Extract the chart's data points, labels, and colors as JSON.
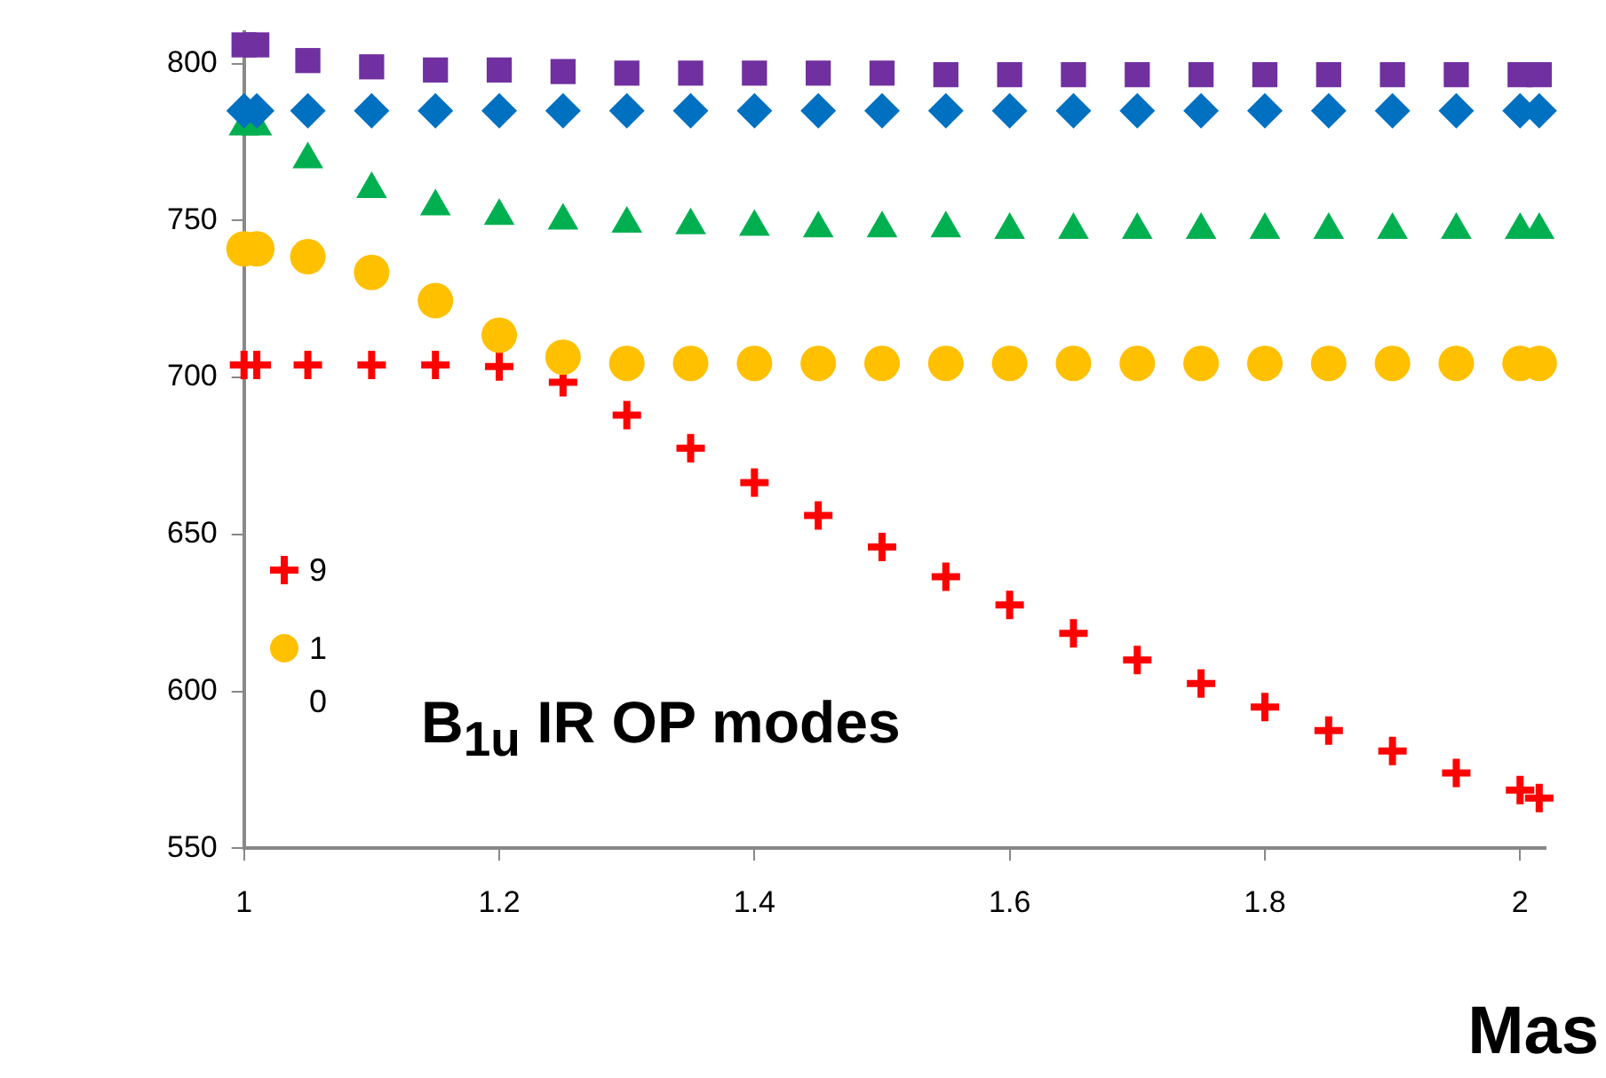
{
  "chart_data": {
    "type": "scatter",
    "xlabel": "Mas",
    "annotations": [
      "B$_{1u}$ IR OP modes"
    ],
    "x": [
      1,
      1.01,
      1.05,
      1.1,
      1.15,
      1.2,
      1.25,
      1.3,
      1.35,
      1.4,
      1.45,
      1.5,
      1.55,
      1.6,
      1.65,
      1.7,
      1.75,
      1.8,
      1.85,
      1.9,
      1.95,
      2.0,
      2.015
    ],
    "series": [
      {
        "color": "#7030a0",
        "marker": "square",
        "values": [
          806,
          806,
          801,
          799,
          798,
          798,
          797.5,
          797,
          797,
          797,
          797,
          797,
          796.5,
          796.5,
          796.5,
          796.5,
          796.5,
          796.5,
          796.5,
          796.5,
          796.5,
          796.5,
          796.5
        ]
      },
      {
        "color": "#0070c0",
        "marker": "diamond",
        "values": [
          785,
          785,
          785,
          785,
          785,
          785,
          785,
          785,
          785,
          785,
          785,
          785,
          785,
          785,
          785,
          785,
          785,
          785,
          785,
          785,
          785,
          785,
          785
        ]
      },
      {
        "color": "#00b050",
        "marker": "triangle",
        "values": [
          780,
          780,
          769.5,
          760,
          754.5,
          751.5,
          750,
          749,
          748.5,
          748,
          747.5,
          747.5,
          747.5,
          747,
          747,
          747,
          747,
          747,
          747,
          747,
          747,
          747,
          747
        ]
      },
      {
        "name": "10",
        "color": "#ffc000",
        "marker": "circle",
        "values": [
          741,
          741,
          738.5,
          733.5,
          724.5,
          713.5,
          706.5,
          704.5,
          704.5,
          704.5,
          704.5,
          704.5,
          704.5,
          704.5,
          704.5,
          704.5,
          704.5,
          704.5,
          704.5,
          704.5,
          704.5,
          704.5,
          704.5
        ]
      },
      {
        "name": "9",
        "color": "#ff0000",
        "marker": "cross",
        "values": [
          704,
          704,
          704,
          704,
          704,
          703.5,
          698.5,
          688,
          677.5,
          666.5,
          656,
          646,
          636.5,
          627.5,
          618.5,
          610,
          602.5,
          595,
          587.5,
          581,
          574,
          568.5,
          566
        ]
      }
    ],
    "xlim": [
      1,
      2.02
    ],
    "xticks": [
      1,
      1.2,
      1.4,
      1.6,
      1.8,
      2
    ],
    "ylim": [
      550,
      810
    ],
    "yticks": [
      550,
      600,
      650,
      700,
      750,
      800
    ],
    "grid": false,
    "legend": "left"
  }
}
